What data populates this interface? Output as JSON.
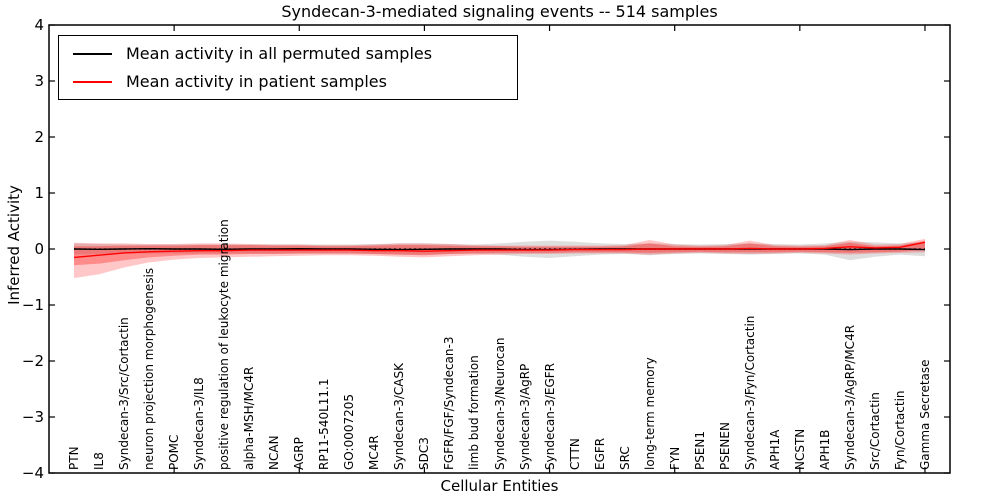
{
  "chart_data": {
    "type": "line",
    "title": "Syndecan-3-mediated signaling events -- 514 samples",
    "xlabel": "Cellular Entities",
    "ylabel": "Inferred Activity",
    "ylim": [
      -4,
      4
    ],
    "xlim": [
      0,
      36
    ],
    "yticks": {
      "values": [
        4,
        3,
        2,
        1,
        0,
        -1,
        -2,
        -3,
        -4
      ],
      "labels": [
        "4",
        "3",
        "2",
        "1",
        "0",
        "−1",
        "−2",
        "−3",
        "−4"
      ]
    },
    "xticks_major": [
      5,
      10,
      15,
      20,
      25,
      30,
      35
    ],
    "grid": false,
    "legend_position": "upper left",
    "categories": [
      "PTN",
      "IL8",
      "Syndecan-3/Src/Cortactin",
      "neuron projection morphogenesis",
      "POMC",
      "Syndecan-3/IL8",
      "positive regulation of leukocyte migration",
      "alpha-MSH/MC4R",
      "NCAN",
      "AGRP",
      "RP11-540L11.1",
      "GO:0007205",
      "MC4R",
      "Syndecan-3/CASK",
      "SDC3",
      "FGFR/FGF/Syndecan-3",
      "limb bud formation",
      "Syndecan-3/Neurocan",
      "Syndecan-3/AgRP",
      "Syndecan-3/EGFR",
      "CTTN",
      "EGFR",
      "SRC",
      "long-term memory",
      "FYN",
      "PSEN1",
      "PSENEN",
      "Syndecan-3/Fyn/Cortactin",
      "APH1A",
      "NCSTN",
      "APH1B",
      "Syndecan-3/AgRP/MC4R",
      "Src/Cortactin",
      "Fyn/Cortactin",
      "Gamma Secretase"
    ],
    "series": [
      {
        "name": "Mean activity in all permuted samples",
        "color": "#000000",
        "values": [
          0,
          -0.005,
          0,
          0.005,
          0,
          0,
          -0.005,
          0,
          0,
          0.005,
          0,
          0,
          -0.005,
          -0.01,
          -0.005,
          0,
          0,
          0,
          -0.01,
          -0.01,
          -0.005,
          0,
          0,
          0,
          0,
          0,
          0,
          0,
          0,
          0,
          0,
          -0.01,
          0,
          0,
          -0.01
        ]
      },
      {
        "name": "Mean activity in patient samples",
        "color": "#ff0000",
        "values": [
          -0.15,
          -0.11,
          -0.07,
          -0.05,
          -0.04,
          -0.03,
          -0.03,
          -0.02,
          -0.02,
          -0.02,
          -0.02,
          -0.02,
          -0.03,
          -0.03,
          -0.04,
          -0.03,
          -0.02,
          -0.02,
          -0.02,
          -0.02,
          -0.01,
          -0.01,
          -0.01,
          0,
          0,
          0,
          0,
          0.01,
          0,
          0,
          0.01,
          0.04,
          0.02,
          0.03,
          0.12
        ]
      }
    ],
    "bands": [
      {
        "name": "permuted-std-band",
        "color": "rgba(0,0,0,0.13)",
        "upper": [
          0.1,
          0.09,
          0.08,
          0.08,
          0.08,
          0.08,
          0.08,
          0.08,
          0.08,
          0.08,
          0.08,
          0.08,
          0.09,
          0.1,
          0.1,
          0.09,
          0.08,
          0.1,
          0.13,
          0.15,
          0.13,
          0.1,
          0.09,
          0.1,
          0.09,
          0.08,
          0.09,
          0.1,
          0.09,
          0.08,
          0.1,
          0.13,
          0.12,
          0.1,
          0.12
        ],
        "lower": [
          -0.1,
          -0.09,
          -0.08,
          -0.08,
          -0.08,
          -0.08,
          -0.08,
          -0.08,
          -0.08,
          -0.08,
          -0.08,
          -0.08,
          -0.09,
          -0.1,
          -0.1,
          -0.09,
          -0.08,
          -0.1,
          -0.14,
          -0.16,
          -0.13,
          -0.1,
          -0.09,
          -0.11,
          -0.09,
          -0.08,
          -0.09,
          -0.1,
          -0.09,
          -0.08,
          -0.1,
          -0.2,
          -0.14,
          -0.1,
          -0.13
        ]
      },
      {
        "name": "patient-outer-band",
        "color": "rgba(255,0,0,0.22)",
        "upper": [
          0.11,
          0.1,
          0.1,
          0.09,
          0.09,
          0.1,
          0.1,
          0.09,
          0.08,
          0.08,
          0.07,
          0.07,
          0.08,
          0.1,
          0.1,
          0.09,
          0.07,
          0.06,
          0.06,
          0.06,
          0.06,
          0.06,
          0.07,
          0.16,
          0.08,
          0.06,
          0.07,
          0.15,
          0.07,
          0.06,
          0.07,
          0.16,
          0.08,
          0.09,
          0.18
        ],
        "lower": [
          -0.52,
          -0.45,
          -0.33,
          -0.24,
          -0.19,
          -0.16,
          -0.15,
          -0.14,
          -0.13,
          -0.12,
          -0.11,
          -0.11,
          -0.12,
          -0.14,
          -0.15,
          -0.13,
          -0.11,
          -0.1,
          -0.09,
          -0.09,
          -0.08,
          -0.08,
          -0.08,
          -0.1,
          -0.08,
          -0.07,
          -0.08,
          -0.09,
          -0.08,
          -0.07,
          -0.08,
          -0.1,
          -0.08,
          -0.07,
          -0.06
        ]
      },
      {
        "name": "patient-inner-band",
        "color": "rgba(255,0,0,0.30)",
        "upper": [
          0.05,
          0.05,
          0.06,
          0.06,
          0.06,
          0.07,
          0.07,
          0.07,
          0.06,
          0.06,
          0.05,
          0.05,
          0.06,
          0.07,
          0.07,
          0.06,
          0.05,
          0.05,
          0.04,
          0.04,
          0.04,
          0.04,
          0.05,
          0.1,
          0.05,
          0.04,
          0.05,
          0.1,
          0.05,
          0.04,
          0.05,
          0.11,
          0.05,
          0.06,
          0.15
        ],
        "lower": [
          -0.29,
          -0.26,
          -0.2,
          -0.15,
          -0.12,
          -0.1,
          -0.1,
          -0.09,
          -0.09,
          -0.08,
          -0.08,
          -0.08,
          -0.09,
          -0.1,
          -0.11,
          -0.09,
          -0.08,
          -0.07,
          -0.07,
          -0.07,
          -0.06,
          -0.06,
          -0.06,
          -0.07,
          -0.06,
          -0.05,
          -0.06,
          -0.06,
          -0.06,
          -0.05,
          -0.06,
          -0.07,
          -0.06,
          -0.05,
          -0.02
        ]
      }
    ],
    "zero_line": {
      "y": 0,
      "style": "dashed",
      "color": "#000000"
    },
    "legend": [
      {
        "label": "Mean activity in all permuted samples",
        "color": "#000000"
      },
      {
        "label": "Mean activity in patient samples",
        "color": "#ff0000"
      }
    ]
  }
}
